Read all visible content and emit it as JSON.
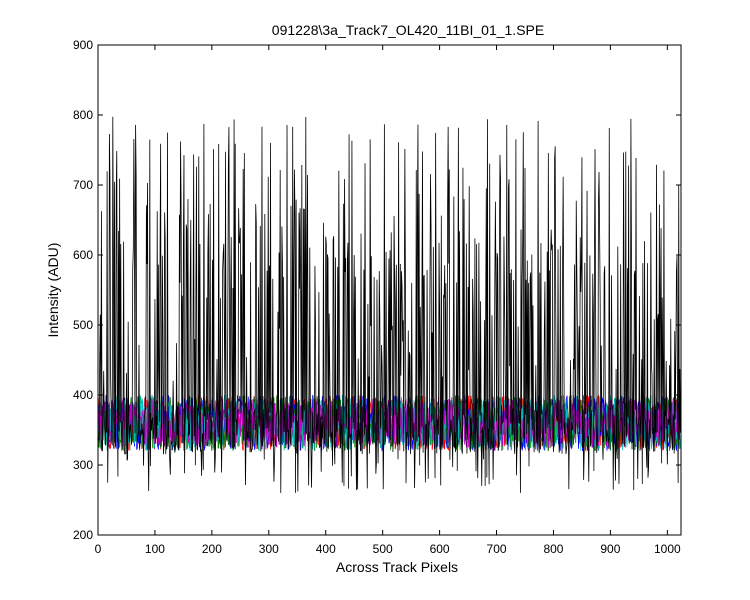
{
  "chart_data": {
    "type": "line",
    "title": "091228\\3a_Track7_OL420_11BI_01_1.SPE",
    "xlabel": "Across Track Pixels",
    "ylabel": "Intensity (ADU)",
    "xlim": [
      0,
      1024
    ],
    "ylim": [
      200,
      900
    ],
    "xticks": [
      "0",
      "100",
      "200",
      "300",
      "400",
      "500",
      "600",
      "700",
      "800",
      "900",
      "1000"
    ],
    "yticks": [
      "200",
      "300",
      "400",
      "500",
      "600",
      "700",
      "800",
      "900"
    ],
    "grid": false,
    "legend": "none",
    "x_points": 1024,
    "series": [
      {
        "color": "#000000",
        "baseline": 350,
        "noise": 35,
        "spike_range": [
          560,
          800
        ],
        "spike_probability": 0.35,
        "dip_min": 260
      },
      {
        "color": "#ff0000",
        "baseline": 360,
        "noise": 35,
        "range": [
          320,
          400
        ]
      },
      {
        "color": "#0000ff",
        "baseline": 360,
        "noise": 35,
        "range": [
          320,
          400
        ]
      },
      {
        "color": "#008000",
        "baseline": 360,
        "noise": 35,
        "range": [
          320,
          400
        ]
      },
      {
        "color": "#00bfbf",
        "baseline": 360,
        "noise": 35,
        "range": [
          320,
          400
        ]
      },
      {
        "color": "#bf00bf",
        "baseline": 360,
        "noise": 30,
        "range": [
          325,
          395
        ]
      }
    ]
  }
}
